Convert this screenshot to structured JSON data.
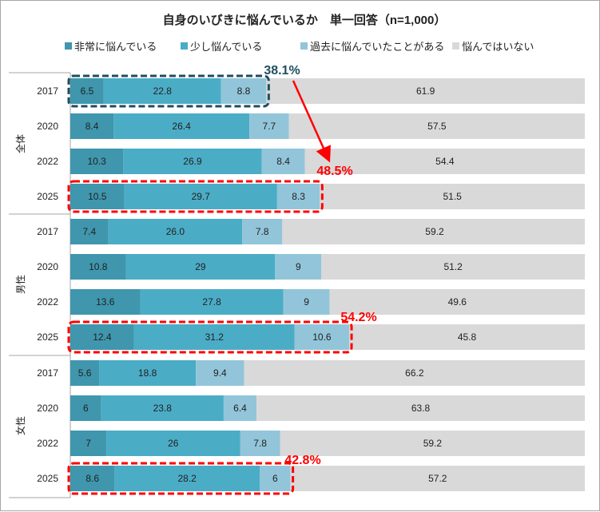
{
  "chart_data": {
    "type": "bar",
    "orientation": "horizontal",
    "stacked": true,
    "title": "自身のいびきに悩んでいるか　単一回答（n=1,000）",
    "xlim": [
      0,
      100
    ],
    "legend_position": "top",
    "series": [
      {
        "name": "非常に悩んでいる",
        "color": "#3f96ad"
      },
      {
        "name": "少し悩んでいる",
        "color": "#4bacc6"
      },
      {
        "name": "過去に悩んでいたことがある",
        "color": "#92c5d9"
      },
      {
        "name": "悩んではいない",
        "color": "#d9d9d9"
      }
    ],
    "groups": [
      {
        "label": "全体",
        "rows": [
          {
            "year": "2017",
            "values": [
              "6.5",
              "22.8",
              "8.8",
              "61.9"
            ]
          },
          {
            "year": "2020",
            "values": [
              "8.4",
              "26.4",
              "7.7",
              "57.5"
            ]
          },
          {
            "year": "2022",
            "values": [
              "10.3",
              "26.9",
              "8.4",
              "54.4"
            ]
          },
          {
            "year": "2025",
            "values": [
              "10.5",
              "29.7",
              "8.3",
              "51.5"
            ]
          }
        ]
      },
      {
        "label": "男性",
        "rows": [
          {
            "year": "2017",
            "values": [
              "7.4",
              "26.0",
              "7.8",
              "59.2"
            ]
          },
          {
            "year": "2020",
            "values": [
              "10.8",
              "29",
              "9",
              "51.2"
            ]
          },
          {
            "year": "2022",
            "values": [
              "13.6",
              "27.8",
              "9",
              "49.6"
            ]
          },
          {
            "year": "2025",
            "values": [
              "12.4",
              "31.2",
              "10.6",
              "45.8"
            ]
          }
        ]
      },
      {
        "label": "女性",
        "rows": [
          {
            "year": "2017",
            "values": [
              "5.6",
              "18.8",
              "9.4",
              "66.2"
            ]
          },
          {
            "year": "2020",
            "values": [
              "6",
              "23.8",
              "6.4",
              "63.8"
            ]
          },
          {
            "year": "2022",
            "values": [
              "7",
              "26",
              "7.8",
              "59.2"
            ]
          },
          {
            "year": "2025",
            "values": [
              "8.6",
              "28.2",
              "6",
              "57.2"
            ]
          }
        ]
      }
    ],
    "annotations": [
      {
        "text": "38.1%",
        "group": 0,
        "row": 0,
        "color": "#1f4e5f"
      },
      {
        "text": "48.5%",
        "group": 0,
        "row": 3,
        "color": "#ff0000"
      },
      {
        "text": "54.2%",
        "group": 1,
        "row": 3,
        "color": "#ff0000"
      },
      {
        "text": "42.8%",
        "group": 2,
        "row": 3,
        "color": "#ff0000"
      }
    ]
  }
}
